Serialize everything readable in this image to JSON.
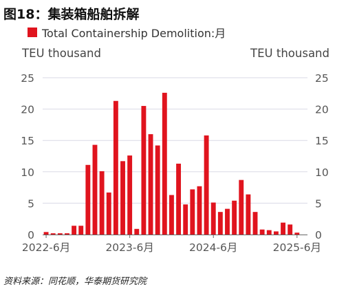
{
  "title": "图18：集装箱船舶拆解",
  "legend": {
    "label": "Total Containership Demolition:月",
    "color": "#e0141e"
  },
  "source": "资料来源：同花顺，华泰期货研究院",
  "chart_data": {
    "type": "bar",
    "title": "图18：集装箱船舶拆解",
    "ylabel_left": "TEU thousand",
    "ylabel_right": "TEU thousand",
    "ylim": [
      0,
      25
    ],
    "yticks": [
      0,
      5,
      10,
      15,
      20,
      25
    ],
    "grid": true,
    "legend_position": "top-left",
    "x_tick_labels": [
      "2022-6月",
      "2023-6月",
      "2024-6月",
      "2025-6月"
    ],
    "x_tick_indices": [
      0,
      12,
      24,
      36
    ],
    "categories": [
      "2022-6",
      "2022-7",
      "2022-8",
      "2022-9",
      "2022-10",
      "2022-11",
      "2022-12",
      "2023-1",
      "2023-2",
      "2023-3",
      "2023-4",
      "2023-5",
      "2023-6",
      "2023-7",
      "2023-8",
      "2023-9",
      "2023-10",
      "2023-11",
      "2023-12",
      "2024-1",
      "2024-2",
      "2024-3",
      "2024-4",
      "2024-5",
      "2024-6",
      "2024-7",
      "2024-8",
      "2024-9",
      "2024-10",
      "2024-11",
      "2024-12",
      "2025-1",
      "2025-2",
      "2025-3",
      "2025-4",
      "2025-5",
      "2025-6",
      "2025-7"
    ],
    "series": [
      {
        "name": "Total Containership Demolition:月",
        "color": "#e0141e",
        "values": [
          0.4,
          0.2,
          0.2,
          0.2,
          1.4,
          1.4,
          11.1,
          14.3,
          10.1,
          6.7,
          21.3,
          11.7,
          12.6,
          0.9,
          20.5,
          16.0,
          14.2,
          22.6,
          6.3,
          11.3,
          4.8,
          7.2,
          7.7,
          15.8,
          5.1,
          3.6,
          4.1,
          5.4,
          8.7,
          6.4,
          3.6,
          0.8,
          0.7,
          0.5,
          1.9,
          1.6,
          0.3,
          0.0
        ]
      }
    ]
  }
}
